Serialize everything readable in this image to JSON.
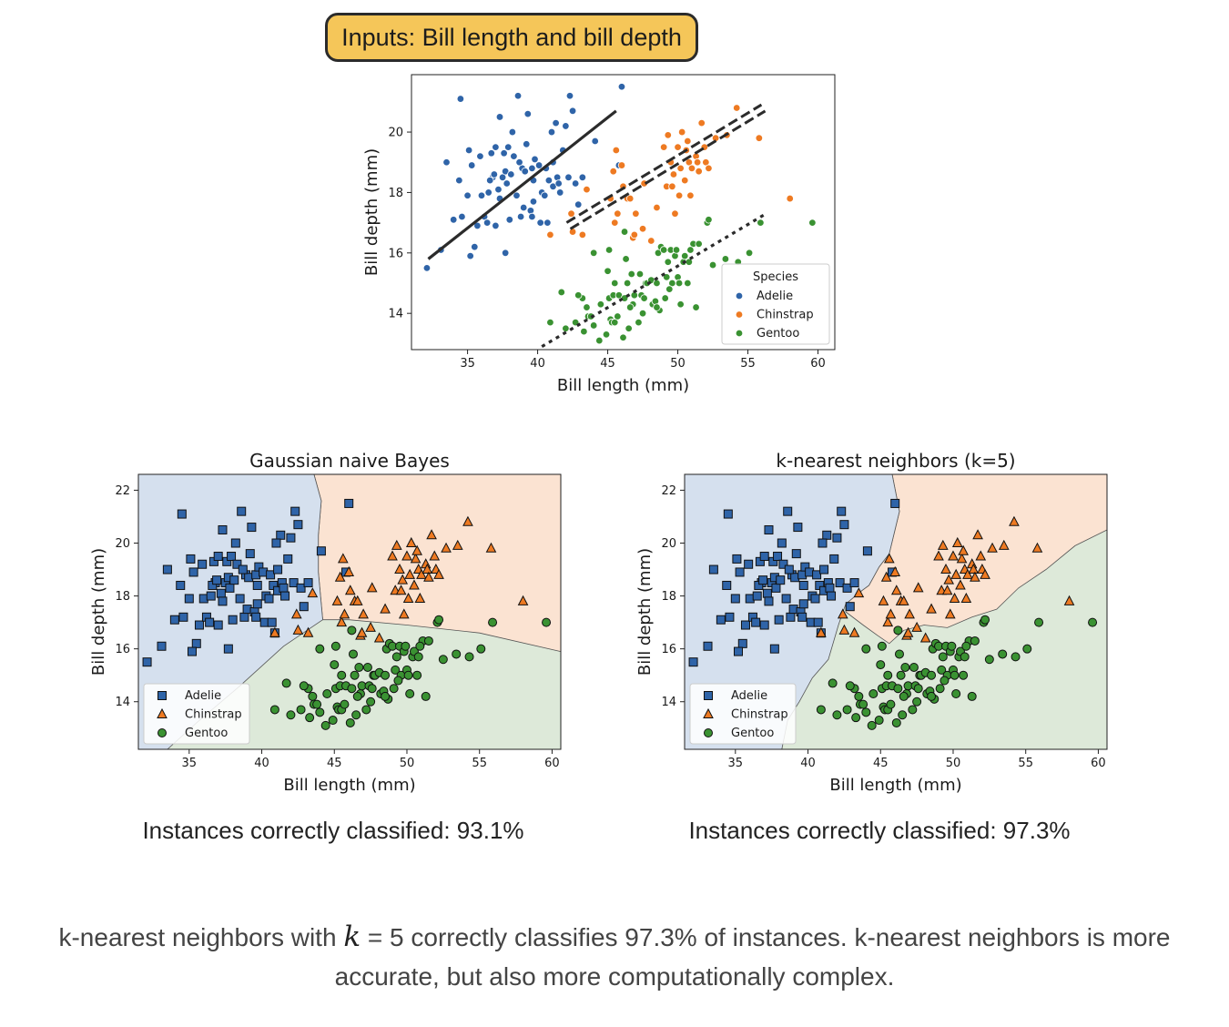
{
  "badge": {
    "text": "Inputs: Bill length and bill depth"
  },
  "colors": {
    "adelie": "#2f64a8",
    "chinstrap": "#ee7a22",
    "gentoo": "#3a9232",
    "region_adelie": "#d5e0ee",
    "region_chinstrap": "#fbe3d2",
    "region_gentoo": "#dde9d9",
    "badge": "#f5c659",
    "line": "#2b2b2b"
  },
  "chart_data": [
    {
      "type": "scatter",
      "title": "",
      "xlabel": "Bill length (mm)",
      "ylabel": "Bill depth (mm)",
      "xlim": [
        31,
        61.2
      ],
      "ylim": [
        12.8,
        21.9
      ],
      "xticks": [
        35,
        40,
        45,
        50,
        55,
        60
      ],
      "yticks": [
        14,
        16,
        18,
        20
      ],
      "legend": {
        "title": "Species",
        "position": "bottom-right",
        "labels": [
          "Adelie",
          "Chinstrap",
          "Gentoo"
        ]
      },
      "series": [
        {
          "name": "Adelie",
          "points": [
            [
              32.1,
              15.5
            ],
            [
              33.1,
              16.1
            ],
            [
              33.5,
              19.0
            ],
            [
              34.0,
              17.1
            ],
            [
              34.5,
              21.1
            ],
            [
              34.6,
              17.2
            ],
            [
              35.0,
              17.9
            ],
            [
              35.1,
              19.4
            ],
            [
              35.3,
              18.9
            ],
            [
              35.5,
              16.2
            ],
            [
              35.7,
              16.9
            ],
            [
              35.9,
              19.2
            ],
            [
              36.0,
              17.9
            ],
            [
              36.2,
              17.2
            ],
            [
              36.4,
              17.0
            ],
            [
              36.5,
              18.0
            ],
            [
              36.7,
              19.3
            ],
            [
              36.8,
              18.5
            ],
            [
              37.0,
              16.9
            ],
            [
              37.2,
              18.1
            ],
            [
              37.3,
              17.8
            ],
            [
              37.5,
              18.5
            ],
            [
              37.6,
              19.3
            ],
            [
              37.7,
              18.7
            ],
            [
              37.8,
              18.3
            ],
            [
              37.9,
              19.5
            ],
            [
              38.1,
              18.6
            ],
            [
              38.2,
              20.0
            ],
            [
              38.3,
              19.2
            ],
            [
              38.5,
              17.9
            ],
            [
              38.6,
              21.2
            ],
            [
              38.8,
              17.2
            ],
            [
              38.9,
              18.8
            ],
            [
              39.0,
              17.5
            ],
            [
              39.1,
              18.7
            ],
            [
              39.2,
              19.6
            ],
            [
              39.3,
              20.6
            ],
            [
              39.5,
              17.4
            ],
            [
              39.6,
              18.8
            ],
            [
              39.7,
              18.4
            ],
            [
              39.8,
              19.1
            ],
            [
              40.1,
              18.9
            ],
            [
              40.2,
              17.0
            ],
            [
              40.3,
              18.0
            ],
            [
              40.5,
              17.9
            ],
            [
              40.6,
              18.8
            ],
            [
              40.8,
              18.4
            ],
            [
              40.9,
              16.6
            ],
            [
              41.1,
              18.2
            ],
            [
              41.1,
              19.0
            ],
            [
              41.3,
              20.3
            ],
            [
              41.4,
              18.5
            ],
            [
              41.5,
              18.3
            ],
            [
              41.6,
              18.0
            ],
            [
              41.8,
              19.4
            ],
            [
              42.0,
              20.2
            ],
            [
              42.2,
              18.5
            ],
            [
              42.3,
              21.2
            ],
            [
              42.5,
              20.7
            ],
            [
              42.7,
              18.3
            ],
            [
              42.9,
              17.6
            ],
            [
              43.2,
              18.5
            ],
            [
              44.1,
              19.7
            ],
            [
              45.8,
              18.9
            ],
            [
              46.0,
              21.5
            ],
            [
              36.6,
              18.4
            ],
            [
              37.7,
              16.0
            ],
            [
              38.7,
              19.0
            ],
            [
              39.6,
              17.2
            ],
            [
              40.7,
              17.0
            ],
            [
              36.9,
              18.6
            ],
            [
              34.4,
              18.4
            ],
            [
              38.0,
              17.1
            ],
            [
              35.2,
              15.9
            ],
            [
              39.7,
              17.7
            ],
            [
              37.3,
              20.5
            ],
            [
              41.0,
              20.0
            ],
            [
              37.0,
              19.5
            ]
          ]
        },
        {
          "name": "Chinstrap",
          "points": [
            [
              40.9,
              16.6
            ],
            [
              42.4,
              17.3
            ],
            [
              42.5,
              16.7
            ],
            [
              43.2,
              16.6
            ],
            [
              43.5,
              18.1
            ],
            [
              45.2,
              17.8
            ],
            [
              45.4,
              18.7
            ],
            [
              45.5,
              17.0
            ],
            [
              45.6,
              19.4
            ],
            [
              45.7,
              17.3
            ],
            [
              46.0,
              18.9
            ],
            [
              46.1,
              18.2
            ],
            [
              46.4,
              17.8
            ],
            [
              46.6,
              17.8
            ],
            [
              46.8,
              16.5
            ],
            [
              46.9,
              16.6
            ],
            [
              47.0,
              17.3
            ],
            [
              47.5,
              16.8
            ],
            [
              48.1,
              16.4
            ],
            [
              48.5,
              17.5
            ],
            [
              49.0,
              19.5
            ],
            [
              49.2,
              18.2
            ],
            [
              49.3,
              19.9
            ],
            [
              49.5,
              19.0
            ],
            [
              49.7,
              18.6
            ],
            [
              49.8,
              17.3
            ],
            [
              50.0,
              19.5
            ],
            [
              50.1,
              17.9
            ],
            [
              50.2,
              18.8
            ],
            [
              50.3,
              20.0
            ],
            [
              50.5,
              18.4
            ],
            [
              50.6,
              19.4
            ],
            [
              50.8,
              19.0
            ],
            [
              50.9,
              17.9
            ],
            [
              51.0,
              18.8
            ],
            [
              51.3,
              19.2
            ],
            [
              51.4,
              19.0
            ],
            [
              51.5,
              18.7
            ],
            [
              51.7,
              20.3
            ],
            [
              52.0,
              19.0
            ],
            [
              52.2,
              18.8
            ],
            [
              52.7,
              19.8
            ],
            [
              53.5,
              19.9
            ],
            [
              54.2,
              20.8
            ],
            [
              55.8,
              19.8
            ],
            [
              58.0,
              17.8
            ],
            [
              50.7,
              19.7
            ],
            [
              51.9,
              19.5
            ],
            [
              49.6,
              18.2
            ],
            [
              47.6,
              18.3
            ]
          ]
        },
        {
          "name": "Gentoo",
          "points": [
            [
              40.9,
              13.7
            ],
            [
              41.7,
              14.7
            ],
            [
              42.0,
              13.5
            ],
            [
              42.7,
              13.7
            ],
            [
              43.2,
              14.5
            ],
            [
              43.3,
              13.4
            ],
            [
              43.5,
              14.2
            ],
            [
              43.6,
              13.9
            ],
            [
              43.8,
              13.9
            ],
            [
              44.0,
              13.6
            ],
            [
              44.4,
              13.1
            ],
            [
              44.5,
              14.3
            ],
            [
              44.9,
              13.3
            ],
            [
              45.0,
              15.4
            ],
            [
              45.1,
              14.5
            ],
            [
              45.2,
              13.8
            ],
            [
              45.3,
              13.7
            ],
            [
              45.4,
              14.6
            ],
            [
              45.5,
              13.7
            ],
            [
              45.7,
              13.9
            ],
            [
              45.8,
              14.6
            ],
            [
              46.1,
              13.2
            ],
            [
              46.2,
              14.5
            ],
            [
              46.3,
              15.8
            ],
            [
              46.4,
              15.0
            ],
            [
              46.5,
              13.5
            ],
            [
              46.7,
              15.3
            ],
            [
              46.8,
              14.3
            ],
            [
              46.9,
              14.6
            ],
            [
              47.2,
              13.7
            ],
            [
              47.3,
              15.3
            ],
            [
              47.4,
              14.6
            ],
            [
              47.5,
              14.0
            ],
            [
              47.7,
              15.0
            ],
            [
              47.8,
              15.0
            ],
            [
              48.1,
              15.1
            ],
            [
              48.2,
              14.3
            ],
            [
              48.4,
              14.4
            ],
            [
              48.5,
              15.0
            ],
            [
              48.6,
              16.0
            ],
            [
              48.7,
              14.1
            ],
            [
              48.8,
              16.2
            ],
            [
              49.0,
              16.1
            ],
            [
              49.1,
              14.5
            ],
            [
              49.2,
              15.2
            ],
            [
              49.3,
              15.7
            ],
            [
              49.5,
              16.1
            ],
            [
              49.6,
              15.0
            ],
            [
              49.8,
              15.9
            ],
            [
              49.9,
              16.1
            ],
            [
              50.0,
              15.2
            ],
            [
              50.1,
              15.0
            ],
            [
              50.2,
              14.3
            ],
            [
              50.4,
              15.7
            ],
            [
              50.5,
              15.9
            ],
            [
              50.7,
              15.0
            ],
            [
              50.8,
              15.7
            ],
            [
              51.1,
              16.3
            ],
            [
              51.3,
              14.2
            ],
            [
              51.5,
              16.3
            ],
            [
              52.1,
              17.0
            ],
            [
              52.2,
              17.1
            ],
            [
              52.5,
              15.6
            ],
            [
              53.4,
              15.8
            ],
            [
              54.3,
              15.7
            ],
            [
              55.1,
              16.0
            ],
            [
              55.9,
              17.0
            ],
            [
              59.6,
              17.0
            ],
            [
              42.9,
              14.6
            ],
            [
              44.0,
              16.0
            ],
            [
              45.1,
              16.1
            ],
            [
              46.2,
              16.7
            ],
            [
              47.6,
              14.5
            ],
            [
              48.5,
              14.2
            ],
            [
              49.4,
              14.8
            ],
            [
              50.9,
              16.1
            ],
            [
              46.6,
              14.2
            ],
            [
              45.5,
              15.0
            ]
          ]
        }
      ],
      "annotations": [
        {
          "style": "solid",
          "from": [
            32.2,
            15.8
          ],
          "to": [
            45.6,
            20.7
          ]
        },
        {
          "style": "dashed-double",
          "from": [
            42.2,
            16.9
          ],
          "to": [
            56.1,
            20.8
          ]
        },
        {
          "style": "dotted",
          "from": [
            40.3,
            12.9
          ],
          "to": [
            56.3,
            17.3
          ]
        }
      ]
    },
    {
      "type": "scatter",
      "title": "Gaussian naive Bayes",
      "xlabel": "Bill length (mm)",
      "ylabel": "Bill depth (mm)",
      "xlim": [
        31.5,
        60.6
      ],
      "ylim": [
        12.2,
        22.6
      ],
      "xticks": [
        35,
        40,
        45,
        50,
        55,
        60
      ],
      "yticks": [
        14,
        16,
        18,
        20,
        22
      ],
      "legend": {
        "position": "bottom-left",
        "labels": [
          "Adelie",
          "Chinstrap",
          "Gentoo"
        ]
      },
      "accuracy": "Instances correctly classified: 93.1%"
    },
    {
      "type": "scatter",
      "title": "k-nearest neighbors (k=5)",
      "xlabel": "Bill length (mm)",
      "ylabel": "Bill depth (mm)",
      "xlim": [
        31.5,
        60.6
      ],
      "ylim": [
        12.2,
        22.6
      ],
      "xticks": [
        35,
        40,
        45,
        50,
        55,
        60
      ],
      "yticks": [
        14,
        16,
        18,
        20,
        22
      ],
      "legend": {
        "position": "bottom-left",
        "labels": [
          "Adelie",
          "Chinstrap",
          "Gentoo"
        ]
      },
      "accuracy": "Instances correctly classified: 97.3%"
    }
  ],
  "caption": {
    "part1": "k-nearest neighbors with ",
    "k": "k",
    "part2": " = 5 correctly classifies 97.3% of instances. k-nearest neighbors is more",
    "line2": "accurate, but also more computationally complex."
  }
}
